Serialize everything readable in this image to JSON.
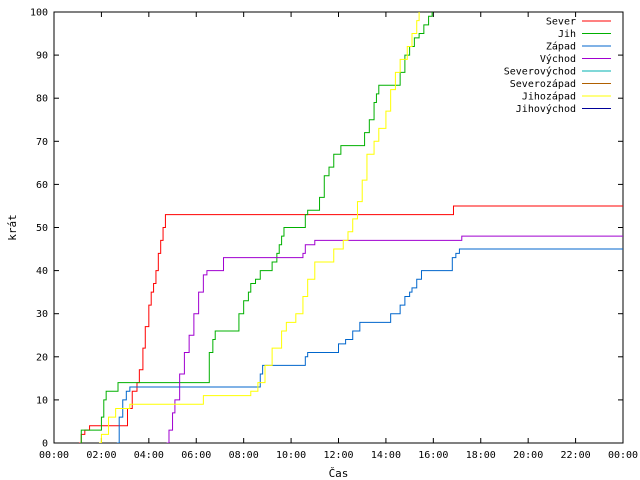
{
  "chart_data": {
    "type": "line",
    "title": "",
    "xlabel": "Čas",
    "ylabel": "krát",
    "xlim": [
      0,
      24
    ],
    "ylim": [
      0,
      100
    ],
    "x_ticks": [
      0,
      2,
      4,
      6,
      8,
      10,
      12,
      14,
      16,
      18,
      20,
      22,
      24
    ],
    "x_tick_labels": [
      "00:00",
      "02:00",
      "04:00",
      "06:00",
      "08:00",
      "10:00",
      "12:00",
      "14:00",
      "16:00",
      "18:00",
      "20:00",
      "22:00",
      "00:00"
    ],
    "y_ticks": [
      0,
      10,
      20,
      30,
      40,
      50,
      60,
      70,
      80,
      90,
      100
    ],
    "y_tick_labels": [
      "0",
      "10",
      "20",
      "30",
      "40",
      "50",
      "60",
      "70",
      "80",
      "90",
      "100"
    ],
    "legend_position": "top-right",
    "grid": false,
    "series": [
      {
        "name": "Sever",
        "color": "#ff0000",
        "step": true,
        "points": [
          [
            1.05,
            0
          ],
          [
            1.15,
            2
          ],
          [
            1.3,
            3
          ],
          [
            1.5,
            4
          ],
          [
            2.5,
            4
          ],
          [
            3.0,
            4
          ],
          [
            3.1,
            8
          ],
          [
            3.3,
            12
          ],
          [
            3.5,
            14
          ],
          [
            3.6,
            17
          ],
          [
            3.75,
            22
          ],
          [
            3.85,
            27
          ],
          [
            4.0,
            32
          ],
          [
            4.1,
            35
          ],
          [
            4.2,
            37
          ],
          [
            4.3,
            40
          ],
          [
            4.4,
            44
          ],
          [
            4.5,
            47
          ],
          [
            4.6,
            50
          ],
          [
            4.7,
            53
          ],
          [
            9.0,
            53
          ],
          [
            12.0,
            53
          ],
          [
            16.75,
            53
          ],
          [
            16.85,
            55
          ],
          [
            24,
            55
          ]
        ]
      },
      {
        "name": "Jih",
        "color": "#00b000",
        "step": true,
        "points": [
          [
            1.1,
            0
          ],
          [
            1.15,
            3
          ],
          [
            2.0,
            6
          ],
          [
            2.1,
            10
          ],
          [
            2.2,
            12
          ],
          [
            2.6,
            12
          ],
          [
            2.7,
            14
          ],
          [
            3.0,
            14
          ],
          [
            6.5,
            14
          ],
          [
            6.55,
            21
          ],
          [
            6.7,
            24
          ],
          [
            6.8,
            26
          ],
          [
            7.7,
            26
          ],
          [
            7.8,
            30
          ],
          [
            8.0,
            33
          ],
          [
            8.2,
            35
          ],
          [
            8.3,
            37
          ],
          [
            8.5,
            38
          ],
          [
            8.7,
            40
          ],
          [
            9.0,
            40
          ],
          [
            9.2,
            42
          ],
          [
            9.4,
            44
          ],
          [
            9.5,
            46
          ],
          [
            9.6,
            48
          ],
          [
            9.7,
            50
          ],
          [
            10.5,
            50
          ],
          [
            10.6,
            53
          ],
          [
            10.7,
            54
          ],
          [
            11.0,
            54
          ],
          [
            11.2,
            57
          ],
          [
            11.4,
            62
          ],
          [
            11.6,
            64
          ],
          [
            11.8,
            67
          ],
          [
            12.1,
            69
          ],
          [
            13.0,
            69
          ],
          [
            13.1,
            72
          ],
          [
            13.3,
            75
          ],
          [
            13.5,
            79
          ],
          [
            13.6,
            81
          ],
          [
            13.7,
            83
          ],
          [
            14.5,
            83
          ],
          [
            14.6,
            86
          ],
          [
            14.8,
            90
          ],
          [
            15.0,
            92
          ],
          [
            15.2,
            94
          ],
          [
            15.4,
            95
          ],
          [
            15.6,
            97
          ],
          [
            15.8,
            99
          ],
          [
            15.95,
            100
          ]
        ]
      },
      {
        "name": "Západ",
        "color": "#0066cc",
        "step": true,
        "points": [
          [
            2.65,
            0
          ],
          [
            2.75,
            6
          ],
          [
            2.9,
            10
          ],
          [
            3.05,
            12
          ],
          [
            3.2,
            13
          ],
          [
            6.0,
            13
          ],
          [
            8.6,
            13
          ],
          [
            8.7,
            16
          ],
          [
            8.8,
            18
          ],
          [
            10.5,
            18
          ],
          [
            10.6,
            20
          ],
          [
            10.7,
            21
          ],
          [
            11.9,
            21
          ],
          [
            12.0,
            23
          ],
          [
            12.3,
            24
          ],
          [
            12.6,
            26
          ],
          [
            12.9,
            28
          ],
          [
            14.0,
            28
          ],
          [
            14.2,
            30
          ],
          [
            14.6,
            32
          ],
          [
            14.8,
            34
          ],
          [
            15.0,
            35
          ],
          [
            15.1,
            36
          ],
          [
            15.3,
            38
          ],
          [
            15.5,
            40
          ],
          [
            16.6,
            40
          ],
          [
            16.8,
            43
          ],
          [
            16.95,
            44
          ],
          [
            17.1,
            45
          ],
          [
            24,
            45
          ]
        ]
      },
      {
        "name": "Východ",
        "color": "#a000d0",
        "step": true,
        "points": [
          [
            4.75,
            0
          ],
          [
            4.85,
            3
          ],
          [
            5.0,
            7
          ],
          [
            5.1,
            10
          ],
          [
            5.3,
            16
          ],
          [
            5.5,
            21
          ],
          [
            5.7,
            25
          ],
          [
            5.9,
            30
          ],
          [
            6.1,
            35
          ],
          [
            6.3,
            39
          ],
          [
            6.45,
            40
          ],
          [
            7.1,
            40
          ],
          [
            7.15,
            43
          ],
          [
            8.0,
            43
          ],
          [
            9.0,
            43
          ],
          [
            9.6,
            43
          ],
          [
            10.5,
            44
          ],
          [
            10.6,
            46
          ],
          [
            10.8,
            46
          ],
          [
            11.0,
            47
          ],
          [
            11.5,
            47
          ],
          [
            12.0,
            47
          ],
          [
            17.0,
            47
          ],
          [
            17.2,
            48
          ],
          [
            24,
            48
          ]
        ]
      },
      {
        "name": "Severovýchod",
        "color": "#00b0b0",
        "step": true,
        "points": []
      },
      {
        "name": "Severozápad",
        "color": "#b06000",
        "step": true,
        "points": []
      },
      {
        "name": "Jihozápad",
        "color": "#ffff00",
        "step": true,
        "points": [
          [
            1.9,
            0
          ],
          [
            2.0,
            2
          ],
          [
            2.3,
            6
          ],
          [
            2.6,
            8
          ],
          [
            3.2,
            9
          ],
          [
            5.0,
            9
          ],
          [
            6.2,
            9
          ],
          [
            6.3,
            11
          ],
          [
            8.0,
            11
          ],
          [
            8.3,
            12
          ],
          [
            8.6,
            14
          ],
          [
            8.9,
            18
          ],
          [
            9.2,
            22
          ],
          [
            9.6,
            26
          ],
          [
            9.8,
            28
          ],
          [
            10.2,
            30
          ],
          [
            10.5,
            34
          ],
          [
            10.7,
            38
          ],
          [
            11.0,
            42
          ],
          [
            11.8,
            45
          ],
          [
            12.2,
            47
          ],
          [
            12.4,
            49
          ],
          [
            12.6,
            52
          ],
          [
            12.8,
            56
          ],
          [
            13.0,
            61
          ],
          [
            13.2,
            67
          ],
          [
            13.5,
            70
          ],
          [
            13.7,
            73
          ],
          [
            14.0,
            77
          ],
          [
            14.2,
            82
          ],
          [
            14.4,
            86
          ],
          [
            14.6,
            89
          ],
          [
            14.9,
            92
          ],
          [
            15.1,
            95
          ],
          [
            15.3,
            98
          ],
          [
            15.4,
            100
          ]
        ]
      },
      {
        "name": "Jihovýchod",
        "color": "#000099",
        "step": true,
        "points": []
      }
    ]
  }
}
